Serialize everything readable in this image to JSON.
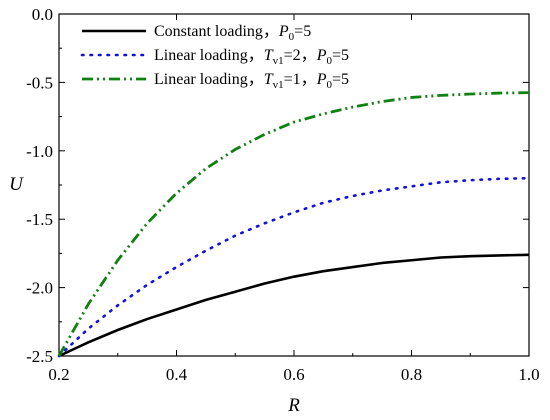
{
  "chart_data": {
    "type": "line",
    "xlabel": "R",
    "ylabel": "U",
    "xlim": [
      0.2,
      1.0
    ],
    "ylim": [
      -2.5,
      0.0
    ],
    "x_ticks": [
      "0.2",
      "0.4",
      "0.6",
      "0.8",
      "1.0"
    ],
    "y_ticks": [
      "0.0",
      "-0.5",
      "-1.0",
      "-1.5",
      "-2.0",
      "-2.5"
    ],
    "grid": false,
    "legend_position": "top-left",
    "series": [
      {
        "name": "Constant loading，P0=5",
        "legend": {
          "prefix": "Constant loading，",
          "p_sym": "P",
          "p_sub": "0",
          "p_val": "=5"
        },
        "color": "#000000",
        "style": "solid",
        "x": [
          0.2,
          0.25,
          0.3,
          0.35,
          0.4,
          0.45,
          0.5,
          0.55,
          0.6,
          0.65,
          0.7,
          0.75,
          0.8,
          0.85,
          0.9,
          0.95,
          1.0
        ],
        "y": [
          -2.5,
          -2.4,
          -2.31,
          -2.23,
          -2.16,
          -2.09,
          -2.03,
          -1.97,
          -1.92,
          -1.88,
          -1.85,
          -1.82,
          -1.8,
          -1.78,
          -1.77,
          -1.765,
          -1.76
        ]
      },
      {
        "name": "Linear loading，Tv1=2，P0=5",
        "legend": {
          "prefix": "Linear loading，",
          "t_sym": "T",
          "t_sub": "v1",
          "t_val": "=2，",
          "p_sym": "P",
          "p_sub": "0",
          "p_val": "=5"
        },
        "color": "#1010e0",
        "style": "dotted",
        "x": [
          0.2,
          0.25,
          0.3,
          0.35,
          0.4,
          0.45,
          0.5,
          0.55,
          0.6,
          0.65,
          0.7,
          0.75,
          0.8,
          0.85,
          0.9,
          0.95,
          1.0
        ],
        "y": [
          -2.5,
          -2.3,
          -2.13,
          -1.98,
          -1.85,
          -1.73,
          -1.62,
          -1.53,
          -1.45,
          -1.38,
          -1.33,
          -1.29,
          -1.26,
          -1.23,
          -1.215,
          -1.205,
          -1.2
        ]
      },
      {
        "name": "Linear loading，Tv1=1，P0=5",
        "legend": {
          "prefix": "Linear loading，",
          "t_sym": "T",
          "t_sub": "v1",
          "t_val": "=1，",
          "p_sym": "P",
          "p_sub": "0",
          "p_val": "=5"
        },
        "color": "#108010",
        "style": "dash-dot-dot",
        "x": [
          0.2,
          0.25,
          0.3,
          0.35,
          0.4,
          0.45,
          0.5,
          0.55,
          0.6,
          0.65,
          0.7,
          0.75,
          0.8,
          0.85,
          0.9,
          0.95,
          1.0
        ],
        "y": [
          -2.5,
          -2.12,
          -1.8,
          -1.53,
          -1.31,
          -1.13,
          -0.99,
          -0.88,
          -0.79,
          -0.73,
          -0.68,
          -0.64,
          -0.61,
          -0.595,
          -0.585,
          -0.578,
          -0.575
        ]
      }
    ]
  }
}
